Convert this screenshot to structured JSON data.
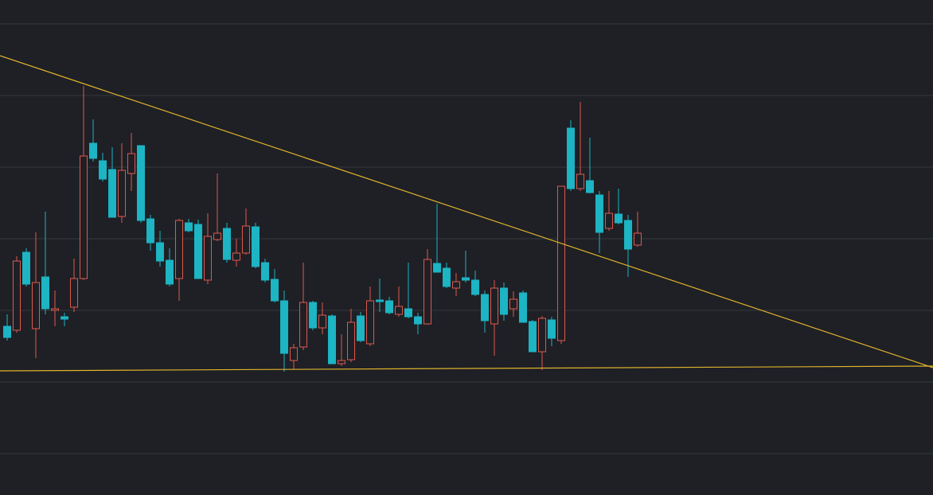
{
  "chart_data": {
    "type": "candlestick",
    "open": [
      160,
      155,
      253,
      157,
      222,
      180,
      172,
      184,
      220,
      390,
      368,
      357,
      298,
      352,
      387,
      295,
      265,
      243,
      220,
      290,
      288,
      218,
      269,
      283,
      243,
      252,
      285,
      240,
      219,
      192,
      117,
      134,
      190,
      158,
      173,
      113,
      118,
      173,
      138,
      193,
      192,
      175,
      182,
      172,
      163,
      239,
      233,
      208,
      221,
      218,
      200,
      163,
      208,
      182,
      202,
      166,
      128,
      168,
      142,
      409,
      333,
      343,
      325,
      283,
      301,
      293,
      262
    ],
    "high": [
      175,
      248,
      258,
      278,
      304,
      205,
      177,
      245,
      462,
      420,
      378,
      385,
      390,
      403,
      387,
      300,
      280,
      258,
      295,
      295,
      294,
      302,
      352,
      290,
      270,
      308,
      290,
      245,
      232,
      205,
      138,
      240,
      192,
      190,
      175,
      150,
      182,
      178,
      210,
      220,
      197,
      210,
      240,
      177,
      257,
      314,
      240,
      227,
      255,
      230,
      205,
      218,
      215,
      204,
      205,
      168,
      173,
      172,
      336,
      419,
      442,
      397,
      330,
      330,
      333,
      300,
      304
    ],
    "low": [
      142,
      152,
      210,
      120,
      175,
      160,
      160,
      178,
      218,
      367,
      342,
      297,
      290,
      330,
      290,
      255,
      235,
      210,
      192,
      278,
      220,
      213,
      267,
      240,
      235,
      250,
      233,
      215,
      190,
      103,
      106,
      130,
      155,
      150,
      113,
      110,
      115,
      140,
      135,
      178,
      175,
      172,
      170,
      150,
      162,
      228,
      208,
      198,
      215,
      198,
      152,
      123,
      167,
      172,
      165,
      128,
      105,
      135,
      138,
      330,
      330,
      327,
      252,
      280,
      288,
      222,
      260
    ],
    "close": [
      146,
      242,
      213,
      215,
      182,
      182,
      169,
      220,
      374,
      371,
      345,
      297,
      356,
      377,
      293,
      265,
      242,
      213,
      293,
      280,
      220,
      273,
      277,
      244,
      252,
      286,
      235,
      218,
      192,
      126,
      133,
      190,
      158,
      174,
      113,
      117,
      165,
      142,
      192,
      191,
      177,
      185,
      172,
      163,
      244,
      228,
      210,
      216,
      218,
      200,
      167,
      208,
      175,
      194,
      165,
      128,
      170,
      145,
      336,
      333,
      351,
      328,
      278,
      302,
      290,
      257,
      277
    ],
    "up_color": "#e0584e",
    "down_color": "#1db4c4",
    "xlim": [
      -0.75,
      96.92
    ],
    "ylim": [
      -52,
      570
    ],
    "yticks": [
      0,
      90,
      180,
      270,
      360,
      450,
      540
    ],
    "grid": true,
    "trendlines": [
      {
        "color": "#e0b22c",
        "x": [
          -0.75,
          96.92
        ],
        "values": [
          500,
          108
        ]
      },
      {
        "color": "#e0b22c",
        "x": [
          -0.75,
          96.92
        ],
        "values": [
          104,
          110
        ]
      }
    ]
  }
}
